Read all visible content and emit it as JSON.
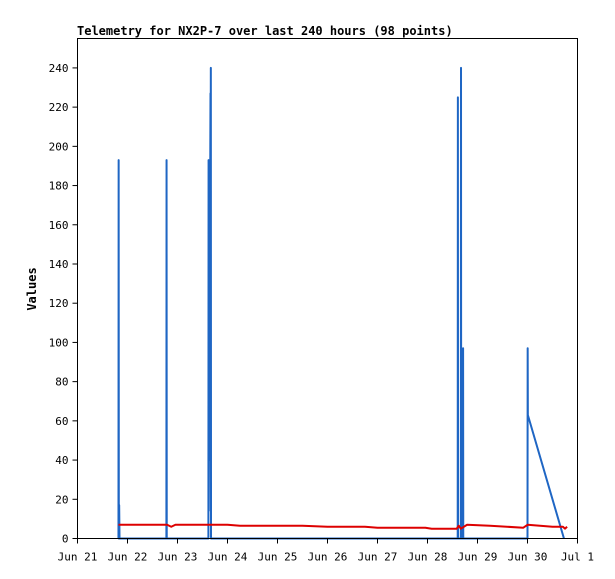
{
  "chart_data": {
    "type": "line",
    "title": "Telemetry for NX2P-7 over last 240 hours (98 points)",
    "xlabel": "",
    "ylabel": "Values",
    "xlim": [
      "2024-06-21T00:00",
      "2024-07-01T00:00"
    ],
    "ylim": [
      0,
      255
    ],
    "x_ticks": [
      {
        "x": "2024-06-21T00:00",
        "label": "Jun 21"
      },
      {
        "x": "2024-06-22T00:00",
        "label": "Jun 22"
      },
      {
        "x": "2024-06-23T00:00",
        "label": "Jun 23"
      },
      {
        "x": "2024-06-24T00:00",
        "label": "Jun 24"
      },
      {
        "x": "2024-06-25T00:00",
        "label": "Jun 25"
      },
      {
        "x": "2024-06-26T00:00",
        "label": "Jun 26"
      },
      {
        "x": "2024-06-27T00:00",
        "label": "Jun 27"
      },
      {
        "x": "2024-06-28T00:00",
        "label": "Jun 28"
      },
      {
        "x": "2024-06-29T00:00",
        "label": "Jun 29"
      },
      {
        "x": "2024-06-30T00:00",
        "label": "Jun 30"
      },
      {
        "x": "2024-07-01T00:00",
        "label": "Jul 1"
      }
    ],
    "y_ticks": [
      0,
      20,
      40,
      60,
      80,
      100,
      120,
      140,
      160,
      180,
      200,
      220,
      240
    ],
    "grid": false,
    "series": [
      {
        "color": "#1f66c4",
        "points": [
          [
            "2024-06-21T19:40",
            0
          ],
          [
            "2024-06-21T19:45",
            193
          ],
          [
            "2024-06-21T19:50",
            0
          ],
          [
            "2024-06-21T20:00",
            17
          ],
          [
            "2024-06-21T20:10",
            0
          ],
          [
            "2024-06-22T18:40",
            0
          ],
          [
            "2024-06-22T18:45",
            193
          ],
          [
            "2024-06-22T18:50",
            0
          ],
          [
            "2024-06-23T14:50",
            0
          ],
          [
            "2024-06-23T14:55",
            193
          ],
          [
            "2024-06-23T15:00",
            14
          ],
          [
            "2024-06-23T15:10",
            68
          ],
          [
            "2024-06-23T15:15",
            40
          ],
          [
            "2024-06-23T15:20",
            94
          ],
          [
            "2024-06-23T15:30",
            120
          ],
          [
            "2024-06-23T15:35",
            147
          ],
          [
            "2024-06-23T15:40",
            173
          ],
          [
            "2024-06-23T15:45",
            200
          ],
          [
            "2024-06-23T15:50",
            227
          ],
          [
            "2024-06-23T15:55",
            180
          ],
          [
            "2024-06-23T16:00",
            240
          ],
          [
            "2024-06-23T16:05",
            0
          ],
          [
            "2024-06-28T14:30",
            0
          ],
          [
            "2024-06-28T14:35",
            225
          ],
          [
            "2024-06-28T14:40",
            0
          ],
          [
            "2024-06-28T16:00",
            0
          ],
          [
            "2024-06-28T16:05",
            240
          ],
          [
            "2024-06-28T16:10",
            0
          ],
          [
            "2024-06-28T16:25",
            73
          ],
          [
            "2024-06-28T16:30",
            0
          ],
          [
            "2024-06-28T17:00",
            0
          ],
          [
            "2024-06-28T17:05",
            97
          ],
          [
            "2024-06-28T17:10",
            0
          ],
          [
            "2024-06-30T00:00",
            0
          ],
          [
            "2024-06-30T00:05",
            97
          ],
          [
            "2024-06-30T00:10",
            63
          ],
          [
            "2024-06-30T17:30",
            0
          ]
        ]
      },
      {
        "color": "#dd0000",
        "points": [
          [
            "2024-06-21T19:40",
            7
          ],
          [
            "2024-06-22T19:00",
            7
          ],
          [
            "2024-06-22T21:00",
            6
          ],
          [
            "2024-06-22T23:00",
            7
          ],
          [
            "2024-06-24T00:00",
            7
          ],
          [
            "2024-06-24T06:00",
            6.5
          ],
          [
            "2024-06-25T12:00",
            6.5
          ],
          [
            "2024-06-26T00:00",
            6
          ],
          [
            "2024-06-26T18:00",
            6
          ],
          [
            "2024-06-27T00:00",
            5.5
          ],
          [
            "2024-06-27T23:00",
            5.5
          ],
          [
            "2024-06-28T02:00",
            5
          ],
          [
            "2024-06-28T14:00",
            5
          ],
          [
            "2024-06-28T15:00",
            6.5
          ],
          [
            "2024-06-28T16:00",
            5
          ],
          [
            "2024-06-28T19:00",
            7
          ],
          [
            "2024-06-29T06:00",
            6.5
          ],
          [
            "2024-06-29T22:00",
            5.5
          ],
          [
            "2024-06-30T00:00",
            7
          ],
          [
            "2024-06-30T12:00",
            6
          ],
          [
            "2024-06-30T17:00",
            6
          ],
          [
            "2024-06-30T18:00",
            5
          ],
          [
            "2024-06-30T19:00",
            6
          ]
        ]
      }
    ]
  }
}
